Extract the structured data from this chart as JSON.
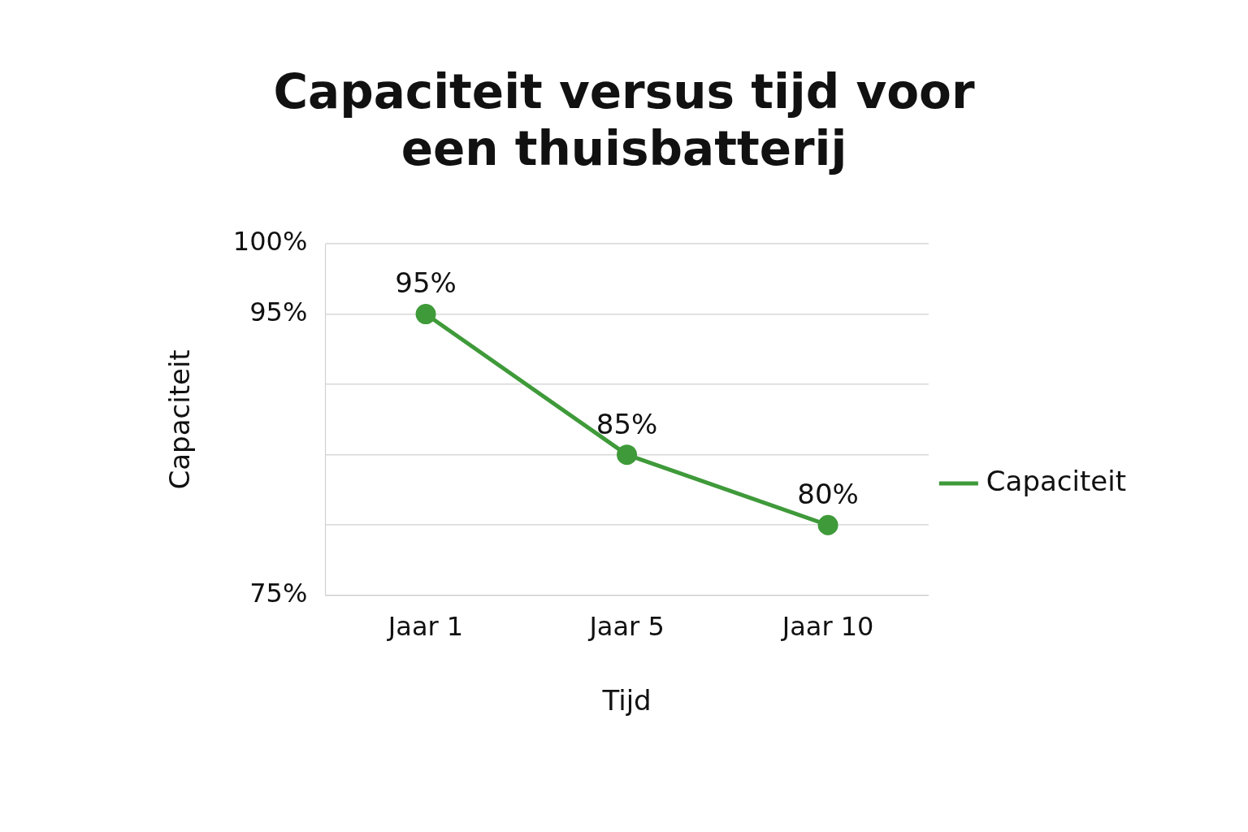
{
  "chart_data": {
    "type": "line",
    "title": "Capaciteit versus tijd voor een thuisbatterij",
    "xlabel": "Tijd",
    "ylabel": "Capaciteit",
    "categories": [
      "Jaar 1",
      "Jaar 5",
      "Jaar 10"
    ],
    "series": [
      {
        "name": "Capaciteit",
        "color": "#3f9a3a",
        "values": [
          95,
          85,
          80
        ]
      }
    ],
    "ylim": [
      75,
      100
    ],
    "yticks": [
      {
        "value": 100,
        "label": "100%"
      },
      {
        "value": 95,
        "label": "95%"
      },
      {
        "value": 90,
        "label": null
      },
      {
        "value": 85,
        "label": null
      },
      {
        "value": 80,
        "label": null
      },
      {
        "value": 75,
        "label": "75%"
      }
    ],
    "value_labels": [
      "95%",
      "85%",
      "80%"
    ],
    "grid": "y",
    "legend": "right",
    "marker": "circle",
    "line_style": "solid"
  }
}
